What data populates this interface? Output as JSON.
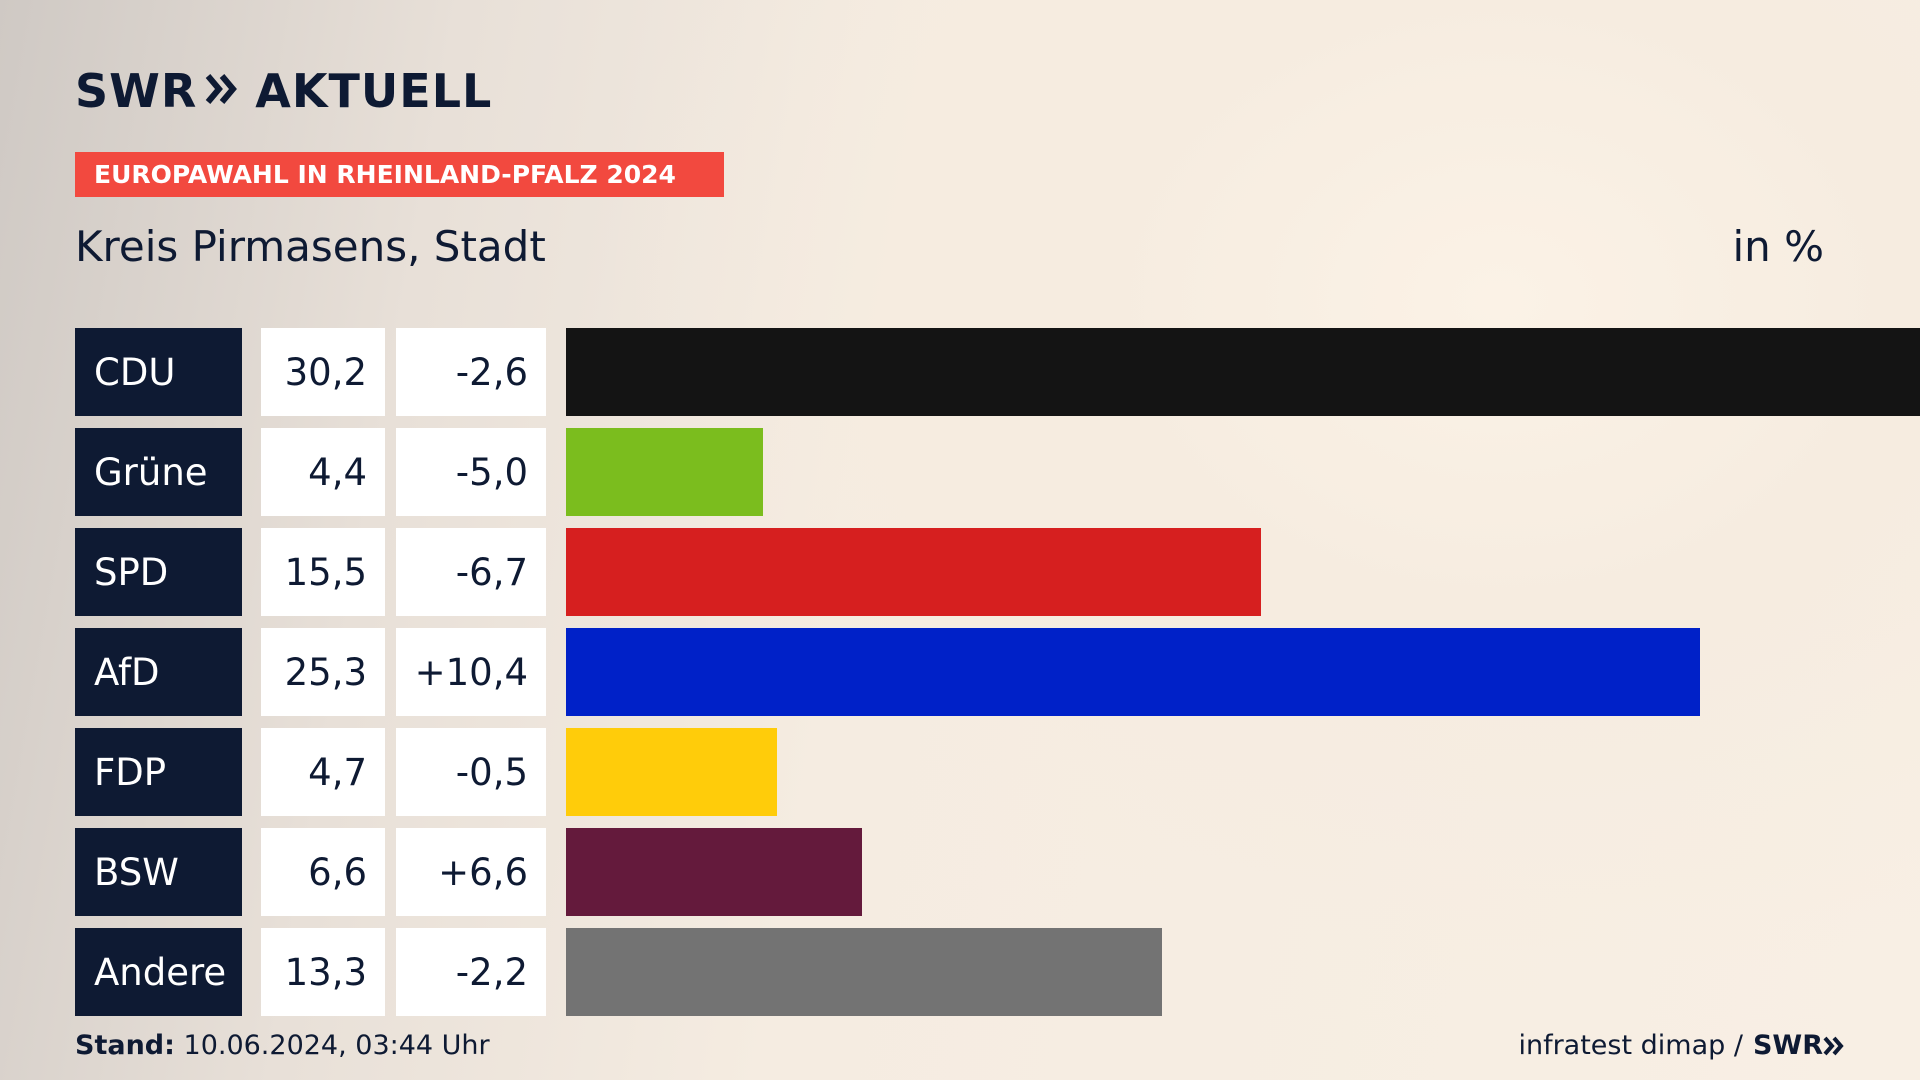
{
  "brand": {
    "logo_left": "SWR",
    "logo_right": "AKTUELL",
    "footer_logo": "SWR"
  },
  "topic_label": "EUROPAWAHL IN RHEINLAND-PFALZ 2024",
  "region": "Kreis Pirmasens, Stadt",
  "unit": "in %",
  "stand_label": "Stand:",
  "stand_value": "10.06.2024, 03:44 Uhr",
  "source": "infratest dimap /",
  "colors": {
    "navy": "#0e1a33",
    "topic_red": "#f2493f"
  },
  "chart_data": {
    "type": "bar",
    "orientation": "horizontal",
    "categories": [
      "CDU",
      "Grüne",
      "SPD",
      "AfD",
      "FDP",
      "BSW",
      "Andere"
    ],
    "values": [
      30.2,
      4.4,
      15.5,
      25.3,
      4.7,
      6.6,
      13.3
    ],
    "value_labels": [
      "30,2",
      "4,4",
      "15,5",
      "25,3",
      "4,7",
      "6,6",
      "13,3"
    ],
    "changes": [
      -2.6,
      -5.0,
      -6.7,
      10.4,
      -0.5,
      6.6,
      -2.2
    ],
    "change_labels": [
      "-2,6",
      "-5,0",
      "-6,7",
      "+10,4",
      "-0,5",
      "+6,6",
      "-2,2"
    ],
    "bar_colors": [
      "#141414",
      "#7bbd1e",
      "#d61f1f",
      "#0021c8",
      "#ffcc0a",
      "#641a3c",
      "#737373"
    ],
    "xlim": [
      0,
      30.2
    ],
    "legend": "none",
    "grid": false
  }
}
